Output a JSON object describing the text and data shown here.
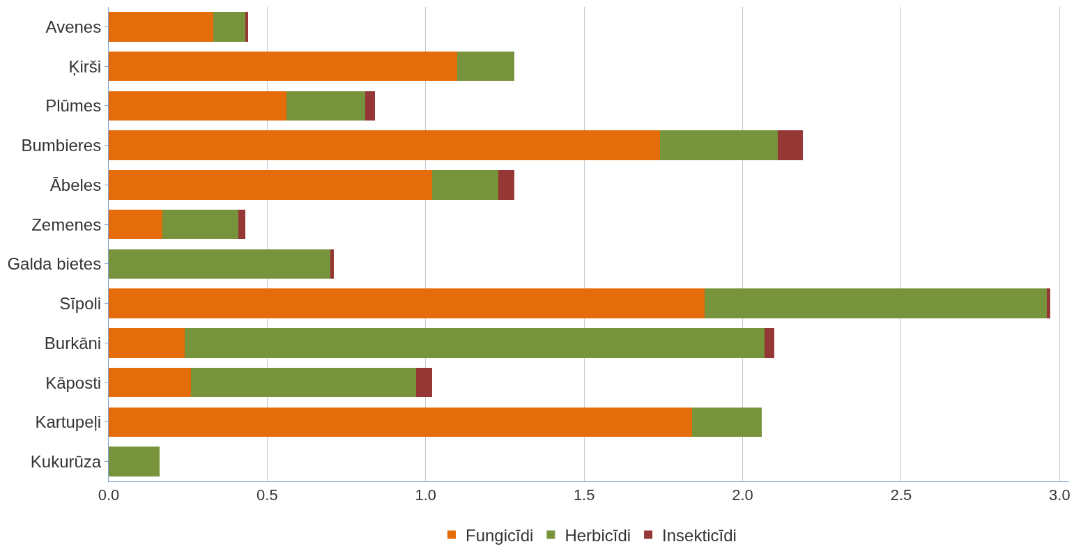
{
  "chart_data": {
    "type": "bar",
    "orientation": "horizontal",
    "stacked": true,
    "categories": [
      "Avenes",
      "Ķirši",
      "Plūmes",
      "Bumbieres",
      "Ābeles",
      "Zemenes",
      "Galda bietes",
      "Sīpoli",
      "Burkāni",
      "Kāposti",
      "Kartupeļi",
      "Kukurūza"
    ],
    "series": [
      {
        "name": "Fungicīdi",
        "color": "#e46c0a",
        "values": [
          0.33,
          1.1,
          0.56,
          1.74,
          1.02,
          0.17,
          0,
          1.88,
          0.24,
          0.26,
          1.84,
          0
        ]
      },
      {
        "name": "Herbicīdi",
        "color": "#77933c",
        "values": [
          0.1,
          0.18,
          0.25,
          0.37,
          0.21,
          0.24,
          0.7,
          1.08,
          1.83,
          0.71,
          0.22,
          0.16
        ]
      },
      {
        "name": "Insekticīdi",
        "color": "#953735",
        "values": [
          0.01,
          0,
          0.03,
          0.08,
          0.05,
          0.02,
          0.01,
          0.01,
          0.03,
          0.05,
          0,
          0
        ]
      }
    ],
    "xlim": [
      0,
      3.03
    ],
    "xticks": [
      {
        "value": 0,
        "label": "0.0"
      },
      0.5,
      {
        "value": 1,
        "label": "1.0"
      },
      1.5,
      {
        "value": 2,
        "label": "2.0"
      },
      2.5,
      {
        "value": 3,
        "label": "3.0"
      }
    ],
    "grid": "x",
    "legend": "bottom"
  }
}
